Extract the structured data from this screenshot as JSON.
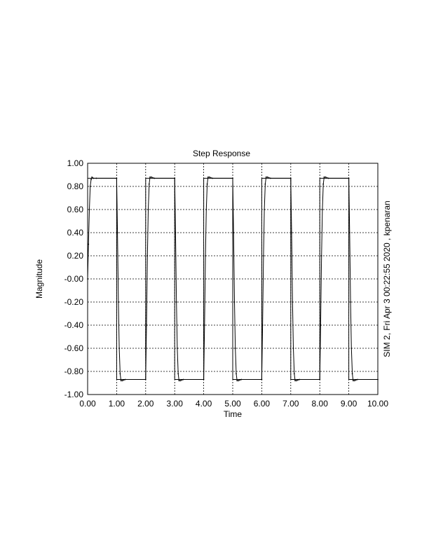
{
  "chart_data": {
    "type": "line",
    "title": "Step Response",
    "xlabel": "Time",
    "ylabel": "Magnitude",
    "side_annotation": "SIM  2, Fri Apr  3 00:22:55 2020 , kpenaran",
    "xlim": [
      0,
      10
    ],
    "ylim": [
      -1,
      1
    ],
    "xticks": [
      0,
      1,
      2,
      3,
      4,
      5,
      6,
      7,
      8,
      9,
      10
    ],
    "yticks": [
      -1,
      -0.8,
      -0.6,
      -0.4,
      -0.2,
      0,
      0.2,
      0.4,
      0.6,
      0.8,
      1
    ],
    "xtick_labels": [
      "0.00",
      "1.00",
      "2.00",
      "3.00",
      "4.00",
      "5.00",
      "6.00",
      "7.00",
      "8.00",
      "9.00",
      "10.00"
    ],
    "ytick_labels": [
      "-1.00",
      "-0.80",
      "-0.60",
      "-0.40",
      "-0.20",
      "-0.00",
      "0.20",
      "0.40",
      "0.60",
      "0.80",
      "1.00"
    ],
    "grid": true,
    "series": [
      {
        "role": "reference-square-wave",
        "x": [
          0,
          1,
          1,
          2,
          2,
          3,
          3,
          4,
          4,
          5,
          5,
          6,
          6,
          7,
          7,
          8,
          8,
          9,
          9,
          10
        ],
        "y": [
          0.87,
          0.87,
          -0.87,
          -0.87,
          0.87,
          0.87,
          -0.87,
          -0.87,
          0.87,
          0.87,
          -0.87,
          -0.87,
          0.87,
          0.87,
          -0.87,
          -0.87,
          0.87,
          0.87,
          -0.87,
          -0.87
        ]
      },
      {
        "role": "response",
        "x": [
          0,
          0.03,
          0.06,
          0.09,
          0.12,
          0.15,
          0.2,
          0.3,
          1.0,
          1.03,
          1.06,
          1.09,
          1.12,
          1.15,
          1.2,
          1.3,
          2.0,
          2.03,
          2.06,
          2.09,
          2.12,
          2.15,
          2.2,
          2.3,
          3.0,
          3.03,
          3.06,
          3.09,
          3.12,
          3.15,
          3.2,
          3.3,
          4.0,
          4.03,
          4.06,
          4.09,
          4.12,
          4.15,
          4.2,
          4.3,
          5.0,
          5.03,
          5.06,
          5.09,
          5.12,
          5.15,
          5.2,
          5.3,
          6.0,
          6.03,
          6.06,
          6.09,
          6.12,
          6.15,
          6.2,
          6.3,
          7.0,
          7.03,
          7.06,
          7.09,
          7.12,
          7.15,
          7.2,
          7.3,
          8.0,
          8.03,
          8.06,
          8.09,
          8.12,
          8.15,
          8.2,
          8.3,
          9.0,
          9.03,
          9.06,
          9.09,
          9.12,
          9.15,
          9.2,
          9.3,
          10.0
        ],
        "y": [
          0,
          0.3,
          0.6,
          0.8,
          0.86,
          0.88,
          0.87,
          0.87,
          0.87,
          0.4,
          -0.2,
          -0.6,
          -0.82,
          -0.88,
          -0.88,
          -0.87,
          -0.87,
          -0.4,
          0.2,
          0.6,
          0.82,
          0.88,
          0.88,
          0.87,
          0.87,
          0.4,
          -0.2,
          -0.6,
          -0.82,
          -0.88,
          -0.88,
          -0.87,
          -0.87,
          -0.4,
          0.2,
          0.6,
          0.82,
          0.88,
          0.88,
          0.87,
          0.87,
          0.4,
          -0.2,
          -0.6,
          -0.82,
          -0.88,
          -0.88,
          -0.87,
          -0.87,
          -0.4,
          0.2,
          0.6,
          0.82,
          0.88,
          0.88,
          0.87,
          0.87,
          0.4,
          -0.2,
          -0.6,
          -0.82,
          -0.88,
          -0.88,
          -0.87,
          -0.87,
          -0.4,
          0.2,
          0.6,
          0.82,
          0.88,
          0.88,
          0.87,
          0.87,
          0.4,
          -0.2,
          -0.6,
          -0.82,
          -0.88,
          -0.88,
          -0.87,
          -0.87
        ]
      }
    ]
  }
}
